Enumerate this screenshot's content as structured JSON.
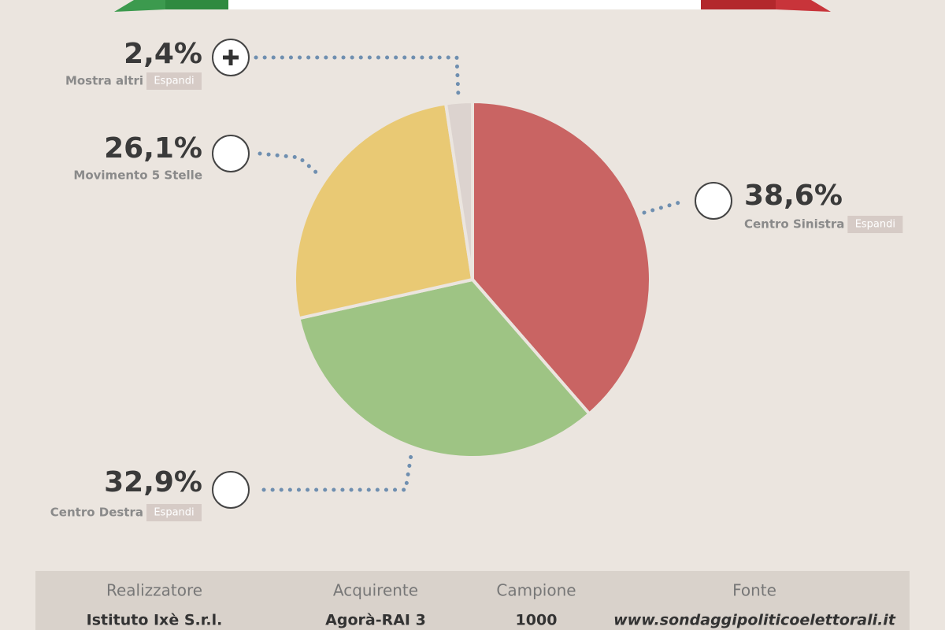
{
  "chart_data": {
    "type": "pie",
    "categories": [
      "Centro Sinistra",
      "Centro Destra",
      "Movimento 5 Stelle",
      "Mostra altri"
    ],
    "values": [
      38.6,
      32.9,
      26.1,
      2.4
    ],
    "value_labels": [
      "38,6%",
      "32,9%",
      "26,1%",
      "2,4%"
    ],
    "colors": [
      "#c96463",
      "#9ec484",
      "#e9c974",
      "#dcd3cf"
    ],
    "expand_label": "Espandi"
  },
  "footer": {
    "headers": [
      "Realizzatore",
      "Acquirente",
      "Campione",
      "Fonte"
    ],
    "values": [
      "Istituto Ixè S.r.l.",
      "Agorà-RAI 3",
      "1000",
      "www.sondaggipoliticoelettorali.it"
    ]
  }
}
